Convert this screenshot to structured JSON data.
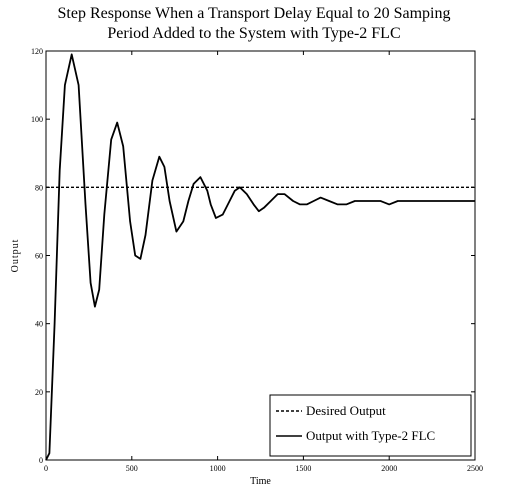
{
  "chart_data": {
    "type": "line",
    "title_lines": [
      "Step Response When a Transport Delay Equal to 20 Samping",
      "Period  Added to the System with Type-2 FLC"
    ],
    "xlabel": "Time",
    "ylabel": "Output",
    "xlim": [
      0,
      2500
    ],
    "ylim": [
      0,
      120
    ],
    "xticks": [
      0,
      500,
      1000,
      1500,
      2000,
      2500
    ],
    "yticks": [
      0,
      20,
      40,
      60,
      80,
      100,
      120
    ],
    "grid": false,
    "legend_position": "bottom-right",
    "series": [
      {
        "name": "Desired Output",
        "style": "dashed",
        "x": [
          0,
          2500
        ],
        "y": [
          80,
          80
        ]
      },
      {
        "name": "Output with Type-2 FLC",
        "style": "solid",
        "x": [
          0,
          20,
          50,
          80,
          110,
          150,
          190,
          230,
          260,
          285,
          310,
          340,
          380,
          415,
          450,
          490,
          520,
          550,
          580,
          620,
          660,
          690,
          720,
          760,
          800,
          830,
          860,
          900,
          940,
          960,
          990,
          1030,
          1070,
          1100,
          1130,
          1170,
          1210,
          1240,
          1270,
          1310,
          1350,
          1390,
          1440,
          1480,
          1520,
          1560,
          1600,
          1650,
          1700,
          1750,
          1800,
          1850,
          1900,
          1950,
          2000,
          2050,
          2100,
          2150,
          2200,
          2250,
          2300,
          2350,
          2400,
          2450,
          2500
        ],
        "y": [
          0,
          2,
          40,
          85,
          110,
          119,
          110,
          75,
          52,
          45,
          50,
          72,
          94,
          99,
          92,
          70,
          60,
          59,
          66,
          82,
          89,
          86,
          76,
          67,
          70,
          76,
          81,
          83,
          79,
          75,
          71,
          72,
          76,
          79,
          80,
          78,
          75,
          73,
          74,
          76,
          78,
          78,
          76,
          75,
          75,
          76,
          77,
          76,
          75,
          75,
          76,
          76,
          76,
          76,
          75,
          76,
          76,
          76,
          76,
          76,
          76,
          76,
          76,
          76,
          76
        ]
      }
    ]
  }
}
